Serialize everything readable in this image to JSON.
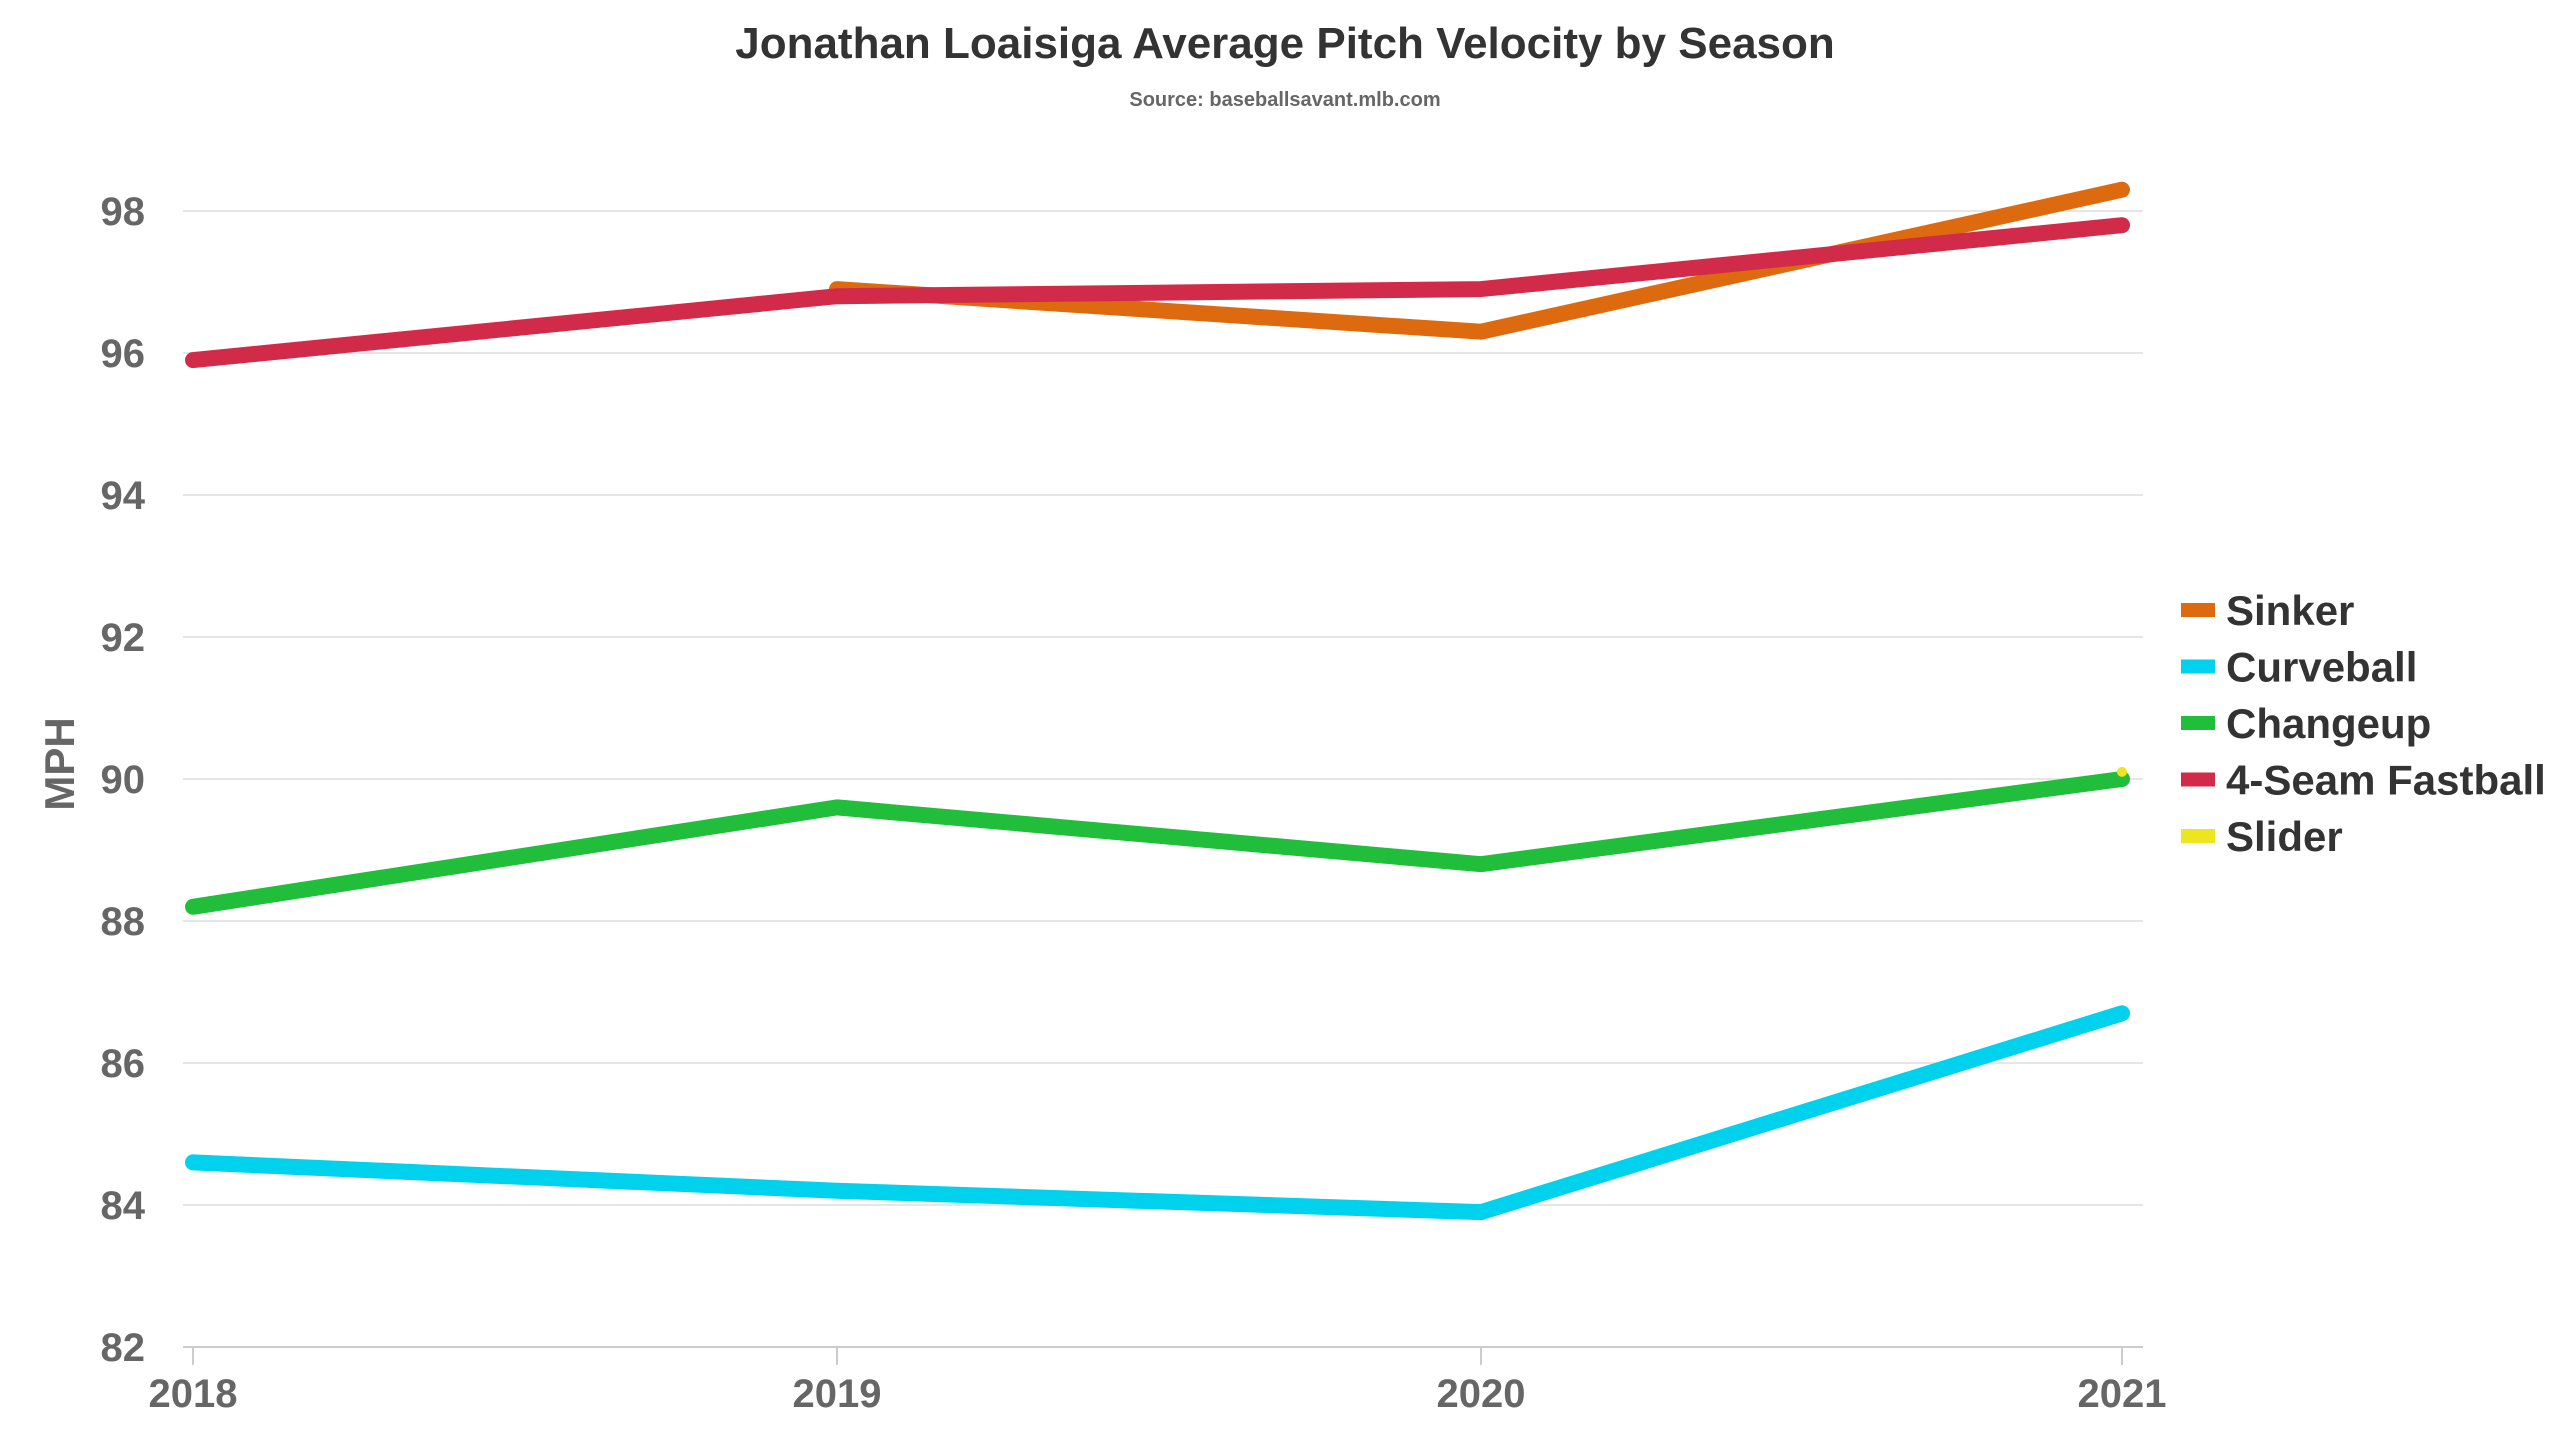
{
  "chart_data": {
    "type": "line",
    "title": "Jonathan Loaisiga Average Pitch Velocity by Season",
    "subtitle": "Source: baseballsavant.mlb.com",
    "xlabel": "",
    "ylabel": "MPH",
    "x": [
      "2018",
      "2019",
      "2020",
      "2021"
    ],
    "ylim": [
      82,
      99
    ],
    "yticks": [
      82,
      84,
      86,
      88,
      90,
      92,
      94,
      96,
      98
    ],
    "grid": true,
    "legend_position": "right",
    "series": [
      {
        "name": "Sinker",
        "color": "#de6a10",
        "values": [
          null,
          96.9,
          96.3,
          98.3
        ]
      },
      {
        "name": "Curveball",
        "color": "#00d1ec",
        "values": [
          84.6,
          84.2,
          83.9,
          86.7
        ]
      },
      {
        "name": "Changeup",
        "color": "#20be3b",
        "values": [
          88.2,
          89.6,
          88.8,
          90.0
        ]
      },
      {
        "name": "4-Seam Fastball",
        "color": "#d22b4a",
        "values": [
          95.9,
          96.8,
          96.9,
          97.8
        ]
      },
      {
        "name": "Slider",
        "color": "#eee521",
        "values": [
          null,
          null,
          null,
          90.1
        ]
      }
    ],
    "draw_order": [
      2,
      0,
      3,
      1,
      4
    ]
  }
}
